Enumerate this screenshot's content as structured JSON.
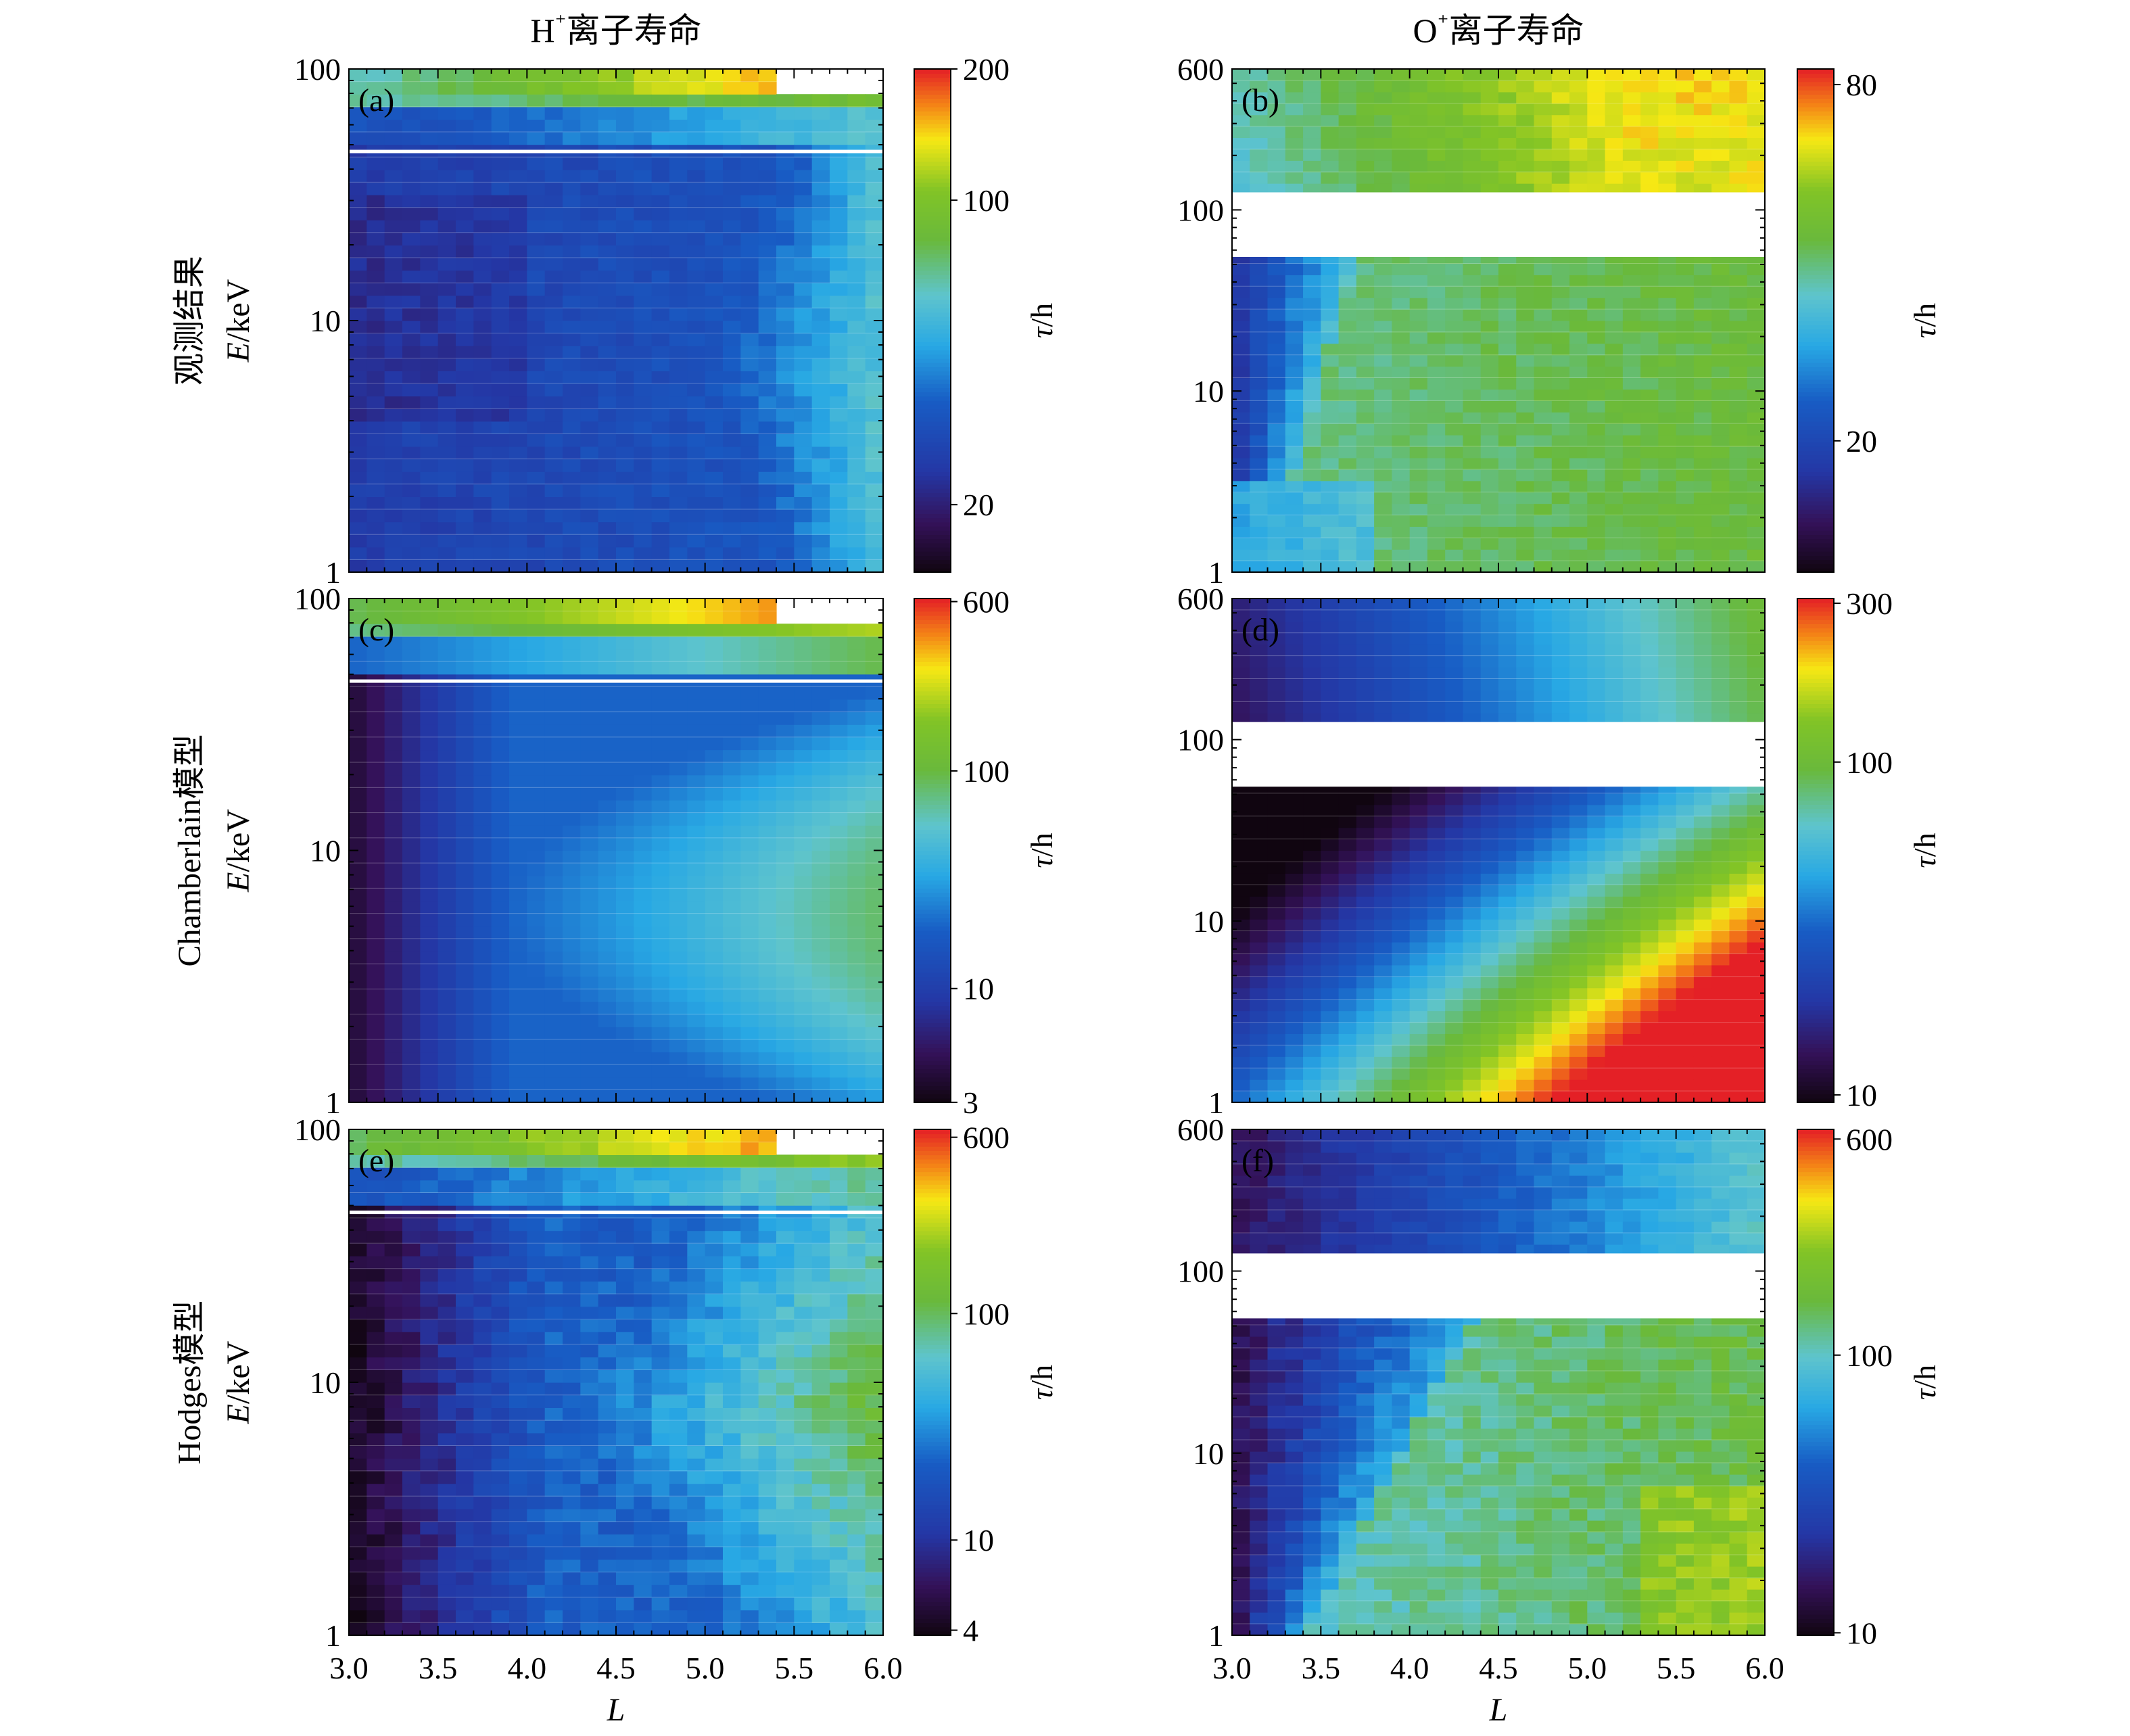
{
  "figure": {
    "column_titles": [
      "H⁺离子寿命",
      "O⁺离子寿命"
    ],
    "row_labels": [
      "观测结果",
      "Chamberlain模型",
      "Hodges模型"
    ],
    "x_label": "L",
    "y_label": "E/keV",
    "colorbar_label": "τ/h"
  },
  "chart_data": [
    {
      "type": "heatmap",
      "panel": "(a)",
      "ion": "H+",
      "row": "观测结果",
      "xlabel": "L",
      "ylabel": "E/keV",
      "xlim": [
        3.0,
        6.0
      ],
      "ylim": [
        1,
        100
      ],
      "yscale": "log",
      "xticks": [
        "3.0",
        "3.5",
        "4.0",
        "4.5",
        "5.0",
        "5.5",
        "6.0"
      ],
      "yticks": [
        "1",
        "10",
        "100"
      ],
      "colorbar": {
        "label": "τ/h",
        "scale": "log",
        "range": [
          14,
          200
        ],
        "ticks": [
          "20",
          "100",
          "200"
        ]
      },
      "gap_band_keV": [],
      "white_line_keV": 47,
      "missing_top_right": {
        "L_from": 5.4,
        "E_above": 83
      },
      "model": "obs_H"
    },
    {
      "type": "heatmap",
      "panel": "(b)",
      "ion": "O+",
      "row": "观测结果",
      "xlabel": "L",
      "ylabel": "E/keV",
      "xlim": [
        3.0,
        6.0
      ],
      "ylim": [
        1,
        600
      ],
      "yscale": "log",
      "xticks": [
        "3.0",
        "3.5",
        "4.0",
        "4.5",
        "5.0",
        "5.5",
        "6.0"
      ],
      "yticks": [
        "1",
        "10",
        "100",
        "600"
      ],
      "colorbar": {
        "label": "τ/h",
        "scale": "log",
        "range": [
          12,
          85
        ],
        "ticks": [
          "20",
          "80"
        ]
      },
      "gap_band_keV": [
        55,
        125
      ],
      "white_line_keV": null,
      "missing_top_right": null,
      "model": "obs_O"
    },
    {
      "type": "heatmap",
      "panel": "(c)",
      "ion": "H+",
      "row": "Chamberlain模型",
      "xlabel": "L",
      "ylabel": "E/keV",
      "xlim": [
        3.0,
        6.0
      ],
      "ylim": [
        1,
        100
      ],
      "yscale": "log",
      "xticks": [
        "3.0",
        "3.5",
        "4.0",
        "4.5",
        "5.0",
        "5.5",
        "6.0"
      ],
      "yticks": [
        "1",
        "10",
        "100"
      ],
      "colorbar": {
        "label": "τ/h",
        "scale": "log",
        "range": [
          3,
          620
        ],
        "ticks": [
          "3",
          "10",
          "100",
          "600"
        ]
      },
      "gap_band_keV": [],
      "white_line_keV": 47,
      "missing_top_right": {
        "L_from": 5.4,
        "E_above": 83
      },
      "model": "ch_H"
    },
    {
      "type": "heatmap",
      "panel": "(d)",
      "ion": "O+",
      "row": "Chamberlain模型",
      "xlabel": "L",
      "ylabel": "E/keV",
      "xlim": [
        3.0,
        6.0
      ],
      "ylim": [
        1,
        600
      ],
      "yscale": "log",
      "xticks": [
        "3.0",
        "3.5",
        "4.0",
        "4.5",
        "5.0",
        "5.5",
        "6.0"
      ],
      "yticks": [
        "1",
        "10",
        "100",
        "600"
      ],
      "colorbar": {
        "label": "τ/h",
        "scale": "log",
        "range": [
          9.5,
          310
        ],
        "ticks": [
          "10",
          "100",
          "300"
        ]
      },
      "gap_band_keV": [
        55,
        125
      ],
      "white_line_keV": null,
      "missing_top_right": null,
      "model": "ch_O"
    },
    {
      "type": "heatmap",
      "panel": "(e)",
      "ion": "H+",
      "row": "Hodges模型",
      "xlabel": "L",
      "ylabel": "E/keV",
      "xlim": [
        3.0,
        6.0
      ],
      "ylim": [
        1,
        100
      ],
      "yscale": "log",
      "xticks": [
        "3.0",
        "3.5",
        "4.0",
        "4.5",
        "5.0",
        "5.5",
        "6.0"
      ],
      "yticks": [
        "1",
        "10",
        "100"
      ],
      "colorbar": {
        "label": "τ/h",
        "scale": "log",
        "range": [
          3.8,
          650
        ],
        "ticks": [
          "4",
          "10",
          "100",
          "600"
        ]
      },
      "gap_band_keV": [],
      "white_line_keV": 47,
      "missing_top_right": {
        "L_from": 5.4,
        "E_above": 83
      },
      "model": "ho_H"
    },
    {
      "type": "heatmap",
      "panel": "(f)",
      "ion": "O+",
      "row": "Hodges模型",
      "xlabel": "L",
      "ylabel": "E/keV",
      "xlim": [
        3.0,
        6.0
      ],
      "ylim": [
        1,
        600
      ],
      "yscale": "log",
      "xticks": [
        "3.0",
        "3.5",
        "4.0",
        "4.5",
        "5.0",
        "5.5",
        "6.0"
      ],
      "yticks": [
        "1",
        "10",
        "100",
        "600"
      ],
      "colorbar": {
        "label": "τ/h",
        "scale": "log",
        "range": [
          9.8,
          650
        ],
        "ticks": [
          "10",
          "100",
          "600"
        ]
      },
      "gap_band_keV": [
        55,
        125
      ],
      "white_line_keV": null,
      "missing_top_right": null,
      "model": "ho_O"
    }
  ]
}
